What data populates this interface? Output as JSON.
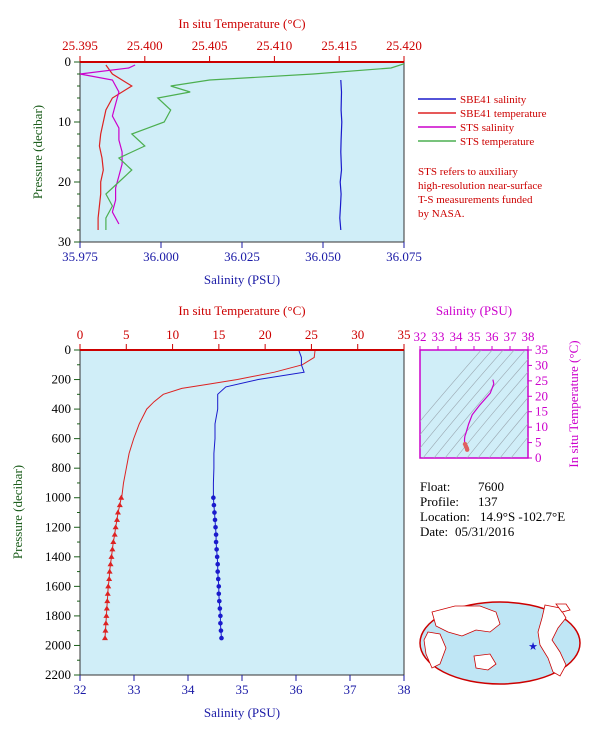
{
  "colors": {
    "panel_bg": "#d0eef8",
    "salinity_axis": "#1a1aa6",
    "temperature_axis": "#cc0000",
    "pressure_axis": "#1a5c1a",
    "ts_axis": "#cc00cc",
    "sbe_salinity": "#1a1acc",
    "sbe_temperature": "#dd2222",
    "sts_salinity": "#cc00cc",
    "sts_temperature": "#4caf50"
  },
  "top_chart": {
    "xlabel_top": "In situ Temperature (°C)",
    "xlabel_bottom": "Salinity (PSU)",
    "ylabel": "Pressure (decibar)",
    "temp_ticks": [
      "25.395",
      "25.400",
      "25.405",
      "25.410",
      "25.415",
      "25.420"
    ],
    "sal_ticks": [
      "35.975",
      "36.000",
      "36.025",
      "36.050",
      "36.075"
    ],
    "p_ticks": [
      "0",
      "10",
      "20",
      "30"
    ],
    "legend": [
      {
        "label": "SBE41 salinity",
        "color": "#1a1acc"
      },
      {
        "label": "SBE41 temperature",
        "color": "#dd2222"
      },
      {
        "label": "STS salinity",
        "color": "#cc00cc"
      },
      {
        "label": "STS temperature",
        "color": "#4caf50"
      }
    ],
    "note_lines": [
      "STS refers to auxiliary",
      "high-resolution near-surface",
      "T-S measurements funded",
      "by NASA."
    ]
  },
  "main_chart": {
    "xlabel_top": "In situ Temperature (°C)",
    "xlabel_bottom": "Salinity (PSU)",
    "ylabel": "Pressure (decibar)",
    "temp_ticks": [
      "0",
      "5",
      "10",
      "15",
      "20",
      "25",
      "30",
      "35"
    ],
    "sal_ticks": [
      "32",
      "33",
      "34",
      "35",
      "36",
      "37",
      "38"
    ],
    "p_ticks": [
      "0",
      "200",
      "400",
      "600",
      "800",
      "1000",
      "1200",
      "1400",
      "1600",
      "1800",
      "2000",
      "2200"
    ]
  },
  "ts_chart": {
    "xlabel_top": "Salinity (PSU)",
    "ylabel": "In situ Temperature (°C)",
    "sal_ticks": [
      "32",
      "33",
      "34",
      "35",
      "36",
      "37",
      "38"
    ],
    "temp_ticks": [
      "0",
      "5",
      "10",
      "15",
      "20",
      "25",
      "30",
      "35"
    ]
  },
  "info": {
    "float_label": "Float:",
    "float_value": "7600",
    "profile_label": "Profile:",
    "profile_value": "137",
    "location_label": "Location:",
    "location_value": "14.9°S  -102.7°E",
    "date_label": "Date:",
    "date_value": "05/31/2016"
  },
  "chart_data": [
    {
      "type": "line",
      "title": "",
      "x_top_label": "In situ Temperature (°C)",
      "x_bottom_label": "Salinity (PSU)",
      "ylabel": "Pressure (decibar)",
      "temp_lim": [
        25.395,
        25.42
      ],
      "sal_lim": [
        35.975,
        36.075
      ],
      "pressure_lim": [
        0,
        30
      ],
      "y_inverted": true,
      "series": [
        {
          "name": "SBE41 salinity",
          "axis": "salinity",
          "pressure": [
            3,
            5,
            8,
            10,
            13,
            15,
            18,
            20,
            22,
            24,
            26,
            28
          ],
          "values": [
            36.0555,
            36.0557,
            36.0556,
            36.0558,
            36.0556,
            36.0555,
            36.0557,
            36.0553,
            36.0556,
            36.0554,
            36.0552,
            36.0555
          ]
        },
        {
          "name": "SBE41 temperature",
          "axis": "temperature",
          "pressure": [
            0.5,
            2,
            4,
            6,
            8,
            10,
            12,
            14,
            16,
            18,
            20,
            22,
            24,
            26,
            28
          ],
          "values": [
            25.397,
            25.3975,
            25.399,
            25.3975,
            25.397,
            25.3968,
            25.3966,
            25.3965,
            25.3967,
            25.3968,
            25.3966,
            25.3966,
            25.3965,
            25.3964,
            25.3964
          ]
        },
        {
          "name": "STS salinity",
          "axis": "salinity",
          "pressure": [
            0.5,
            1,
            2,
            3,
            5,
            7,
            9,
            11,
            13,
            15,
            17,
            19,
            21,
            23,
            25,
            27
          ],
          "values": [
            35.992,
            35.99,
            35.975,
            35.985,
            35.987,
            35.986,
            35.985,
            35.987,
            35.987,
            35.988,
            35.988,
            35.987,
            35.986,
            35.986,
            35.985,
            35.987
          ]
        },
        {
          "name": "STS temperature",
          "axis": "temperature",
          "pressure": [
            0.3,
            1,
            2,
            3,
            4,
            5,
            6,
            8,
            10,
            12,
            14,
            16,
            18,
            20,
            22,
            24,
            26,
            28
          ],
          "values": [
            25.42,
            25.419,
            25.413,
            25.405,
            25.402,
            25.4035,
            25.401,
            25.402,
            25.4015,
            25.399,
            25.4,
            25.398,
            25.399,
            25.398,
            25.397,
            25.3975,
            25.397,
            25.397
          ]
        }
      ]
    },
    {
      "type": "line",
      "title": "",
      "x_top_label": "In situ Temperature (°C)",
      "x_bottom_label": "Salinity (PSU)",
      "ylabel": "Pressure (decibar)",
      "temp_lim": [
        0,
        35
      ],
      "sal_lim": [
        32,
        38
      ],
      "pressure_lim": [
        0,
        2200
      ],
      "y_inverted": true,
      "series": [
        {
          "name": "",
          "axis": "temperature",
          "pressure": [
            0,
            50,
            100,
            150,
            200,
            230,
            260,
            300,
            350,
            400,
            500,
            600,
            700,
            800,
            900,
            1000
          ],
          "values": [
            25.4,
            25.3,
            24,
            21,
            17,
            14,
            11,
            9,
            8,
            7.2,
            6.4,
            5.8,
            5.3,
            5.0,
            4.7,
            4.5
          ]
        },
        {
          "name": "",
          "axis": "temperature",
          "markers": "triangle",
          "pressure": [
            1000,
            1050,
            1100,
            1150,
            1200,
            1250,
            1300,
            1350,
            1400,
            1450,
            1500,
            1550,
            1600,
            1650,
            1700,
            1750,
            1800,
            1850,
            1900,
            1950
          ],
          "values": [
            4.45,
            4.3,
            4.1,
            4.0,
            3.85,
            3.75,
            3.6,
            3.5,
            3.4,
            3.3,
            3.2,
            3.15,
            3.05,
            3.0,
            2.95,
            2.9,
            2.85,
            2.8,
            2.75,
            2.7
          ]
        },
        {
          "name": "",
          "axis": "salinity",
          "pressure": [
            0,
            50,
            100,
            150,
            200,
            250,
            300,
            400,
            500,
            600,
            700,
            800,
            900,
            1000
          ],
          "values": [
            36.05,
            36.1,
            36.1,
            36.15,
            35.3,
            34.7,
            34.55,
            34.55,
            34.5,
            34.5,
            34.48,
            34.48,
            34.47,
            34.47
          ]
        },
        {
          "name": "",
          "axis": "salinity",
          "markers": "circle",
          "pressure": [
            1000,
            1050,
            1100,
            1150,
            1200,
            1250,
            1300,
            1350,
            1400,
            1450,
            1500,
            1550,
            1600,
            1650,
            1700,
            1750,
            1800,
            1850,
            1900,
            1950
          ],
          "values": [
            34.47,
            34.48,
            34.49,
            34.5,
            34.51,
            34.52,
            34.52,
            34.53,
            34.54,
            34.55,
            34.55,
            34.56,
            34.57,
            34.57,
            34.58,
            34.59,
            34.6,
            34.6,
            34.61,
            34.62
          ]
        }
      ]
    },
    {
      "type": "scatter",
      "title": "",
      "x_top_label": "Salinity (PSU)",
      "ylabel": "In situ Temperature (°C)",
      "xlim": [
        32,
        38
      ],
      "ylim": [
        0,
        35
      ],
      "series": [
        {
          "name": "",
          "x": [
            36.05,
            36.1,
            35.9,
            35.3,
            34.9,
            34.7,
            34.6,
            34.55,
            34.5,
            34.48,
            34.47,
            34.5,
            34.55,
            34.6,
            34.62
          ],
          "y": [
            25.4,
            24,
            21,
            17,
            14,
            11,
            9,
            8,
            7.2,
            6.4,
            5.5,
            4.5,
            3.8,
            3.2,
            2.7
          ]
        }
      ]
    }
  ]
}
